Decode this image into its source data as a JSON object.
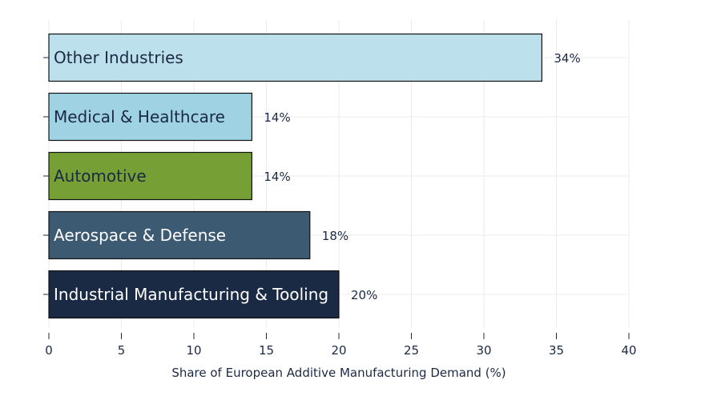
{
  "chart_data": {
    "type": "bar",
    "orientation": "horizontal",
    "title": "",
    "xlabel": "Share of European Additive Manufacturing Demand (%)",
    "ylabel": "",
    "xlim": [
      0,
      40
    ],
    "xticks": [
      0,
      5,
      10,
      15,
      20,
      25,
      30,
      35,
      40
    ],
    "grid": true,
    "legend": "none",
    "categories": [
      "Industrial Manufacturing & Tooling",
      "Aerospace & Defense",
      "Automotive",
      "Medical & Healthcare",
      "Other Industries"
    ],
    "values": [
      20,
      18,
      14,
      14,
      34
    ],
    "value_labels": [
      "20%",
      "18%",
      "14%",
      "14%",
      "34%"
    ],
    "colors": [
      "#1b2a44",
      "#3d5a73",
      "#76a035",
      "#9fd3e4",
      "#bde1ec"
    ],
    "label_colors": [
      "#ffffff",
      "#ffffff",
      "#1b2a44",
      "#1b2a44",
      "#1b2a44"
    ]
  }
}
